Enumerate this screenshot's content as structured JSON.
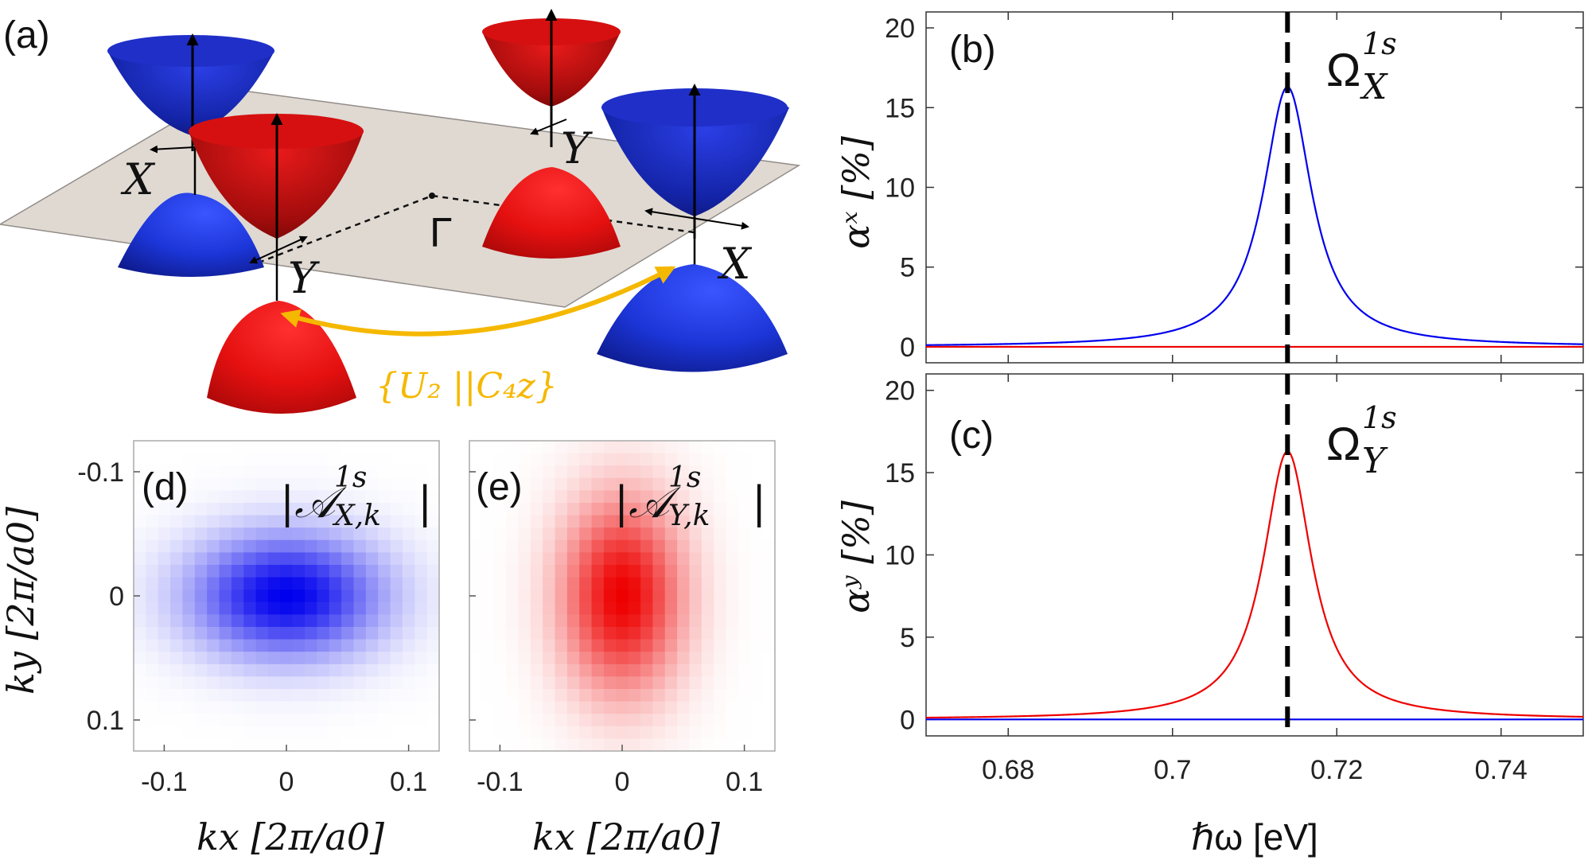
{
  "panels": {
    "a": {
      "label": "(a)",
      "points": [
        "X",
        "Y",
        "Γ",
        "Y",
        "X"
      ],
      "symmetry": "{U₂ ||C₄z}"
    },
    "b": {
      "label": "(b)",
      "peak_label": "Ω",
      "peak_sup": "1s",
      "peak_sub": "X"
    },
    "c": {
      "label": "(c)",
      "peak_label": "Ω",
      "peak_sup": "1s",
      "peak_sub": "Y"
    },
    "d": {
      "label": "(d)",
      "title": "|𝒜",
      "title_sup": "1s",
      "title_sub": "X,k",
      "title_end": "|"
    },
    "e": {
      "label": "(e)",
      "title": "|𝒜",
      "title_sup": "1s",
      "title_sub": "Y,k",
      "title_end": "|"
    }
  },
  "axes": {
    "b_ylabel": "αˣ [%]",
    "c_ylabel": "αʸ [%]",
    "bc_xlabel": "ℏω [eV]",
    "de_ylabel": "k_y [2π/a₀]",
    "de_xlabel": "k_x [2π/a₀]",
    "de_ylabel_text": "ky [2π/a0]",
    "de_xlabel_text": "kx [2π/a0]"
  },
  "colors": {
    "blue": "#0000ee",
    "red": "#ee0000",
    "gold": "#f5b800",
    "plane": "#ddd6cf"
  },
  "chart_data": [
    {
      "id": "b",
      "type": "line",
      "xlim": [
        0.67,
        0.75
      ],
      "ylim": [
        -1,
        21
      ],
      "xticks": [
        0.68,
        0.7,
        0.72,
        0.74
      ],
      "xtick_labels": [
        "0.68",
        "0.7",
        "0.72",
        "0.74"
      ],
      "yticks": [
        0,
        5,
        10,
        15,
        20
      ],
      "ytick_labels": [
        "0",
        "5",
        "10",
        "15",
        "20"
      ],
      "vline": 0.714,
      "series": [
        {
          "name": "alpha_x_blue",
          "color": "#0000ee",
          "shape": "lorentzian",
          "center": 0.714,
          "peak": 16.3,
          "hwhm": 0.0036
        },
        {
          "name": "alpha_x_red",
          "color": "#ee0000",
          "shape": "flat",
          "value": 0
        }
      ]
    },
    {
      "id": "c",
      "type": "line",
      "xlim": [
        0.67,
        0.75
      ],
      "ylim": [
        -1,
        21
      ],
      "xticks": [
        0.68,
        0.7,
        0.72,
        0.74
      ],
      "xtick_labels": [
        "0.68",
        "0.7",
        "0.72",
        "0.74"
      ],
      "yticks": [
        0,
        5,
        10,
        15,
        20
      ],
      "ytick_labels": [
        "0",
        "5",
        "10",
        "15",
        "20"
      ],
      "vline": 0.714,
      "series": [
        {
          "name": "alpha_y_red",
          "color": "#ee0000",
          "shape": "lorentzian",
          "center": 0.714,
          "peak": 16.3,
          "hwhm": 0.0036
        },
        {
          "name": "alpha_y_blue",
          "color": "#0000ee",
          "shape": "flat",
          "value": 0
        }
      ]
    },
    {
      "id": "d",
      "type": "heatmap",
      "color": "#0000ee",
      "xlim": [
        -0.125,
        0.125
      ],
      "ylim": [
        -0.125,
        0.125
      ],
      "xticks": [
        -0.1,
        0,
        0.1
      ],
      "xtick_labels": [
        "-0.1",
        "0",
        "0.1"
      ],
      "yticks": [
        -0.1,
        0,
        0.1
      ],
      "ytick_labels": [
        "-0.1",
        "0",
        "0.1"
      ],
      "grid_n": 25,
      "sigma_x": 0.055,
      "sigma_y": 0.035
    },
    {
      "id": "e",
      "type": "heatmap",
      "color": "#ee0000",
      "xlim": [
        -0.125,
        0.125
      ],
      "ylim": [
        -0.125,
        0.125
      ],
      "xticks": [
        -0.1,
        0,
        0.1
      ],
      "xtick_labels": [
        "-0.1",
        "0",
        "0.1"
      ],
      "yticks": [
        -0.1,
        0,
        0.1
      ],
      "ytick_labels": [
        "-0.1",
        "0",
        "0.1"
      ],
      "grid_n": 25,
      "sigma_x": 0.035,
      "sigma_y": 0.055
    }
  ]
}
